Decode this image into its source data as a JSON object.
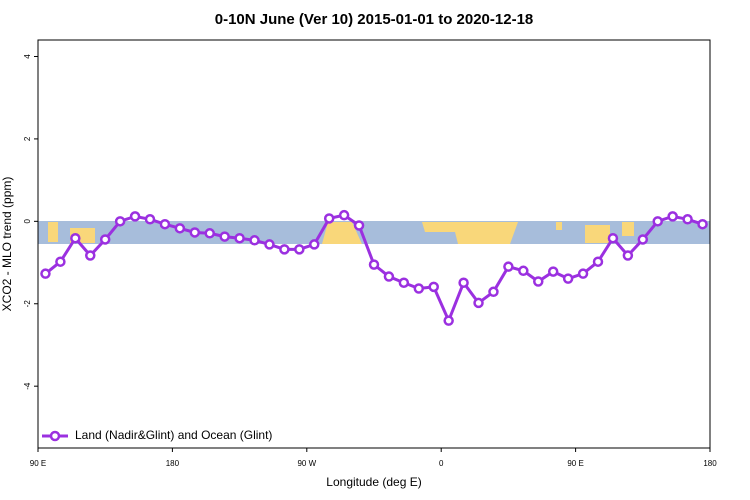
{
  "chart_data": {
    "type": "line",
    "title": "0-10N June (Ver 10)   2015-01-01 to 2020-12-18",
    "x_label": "Longitude (deg E)",
    "y_label": "XCO2 - MLO trend (ppm)",
    "xlim": [
      90,
      540
    ],
    "ylim": [
      -5.5,
      4.4
    ],
    "xticks": [
      {
        "value": 90,
        "label": "90 E"
      },
      180,
      {
        "value": 270,
        "label": "90 W"
      },
      {
        "value": 360,
        "label": "0"
      },
      {
        "value": 450,
        "label": "90 E"
      },
      {
        "value": 540,
        "label": "180"
      }
    ],
    "yticks": [
      -4,
      -2,
      0,
      2,
      4
    ],
    "legend": "bottom-left",
    "x": [
      95,
      105,
      115,
      125,
      135,
      145,
      155,
      165,
      175,
      185,
      195,
      205,
      215,
      225,
      235,
      245,
      255,
      265,
      275,
      285,
      295,
      305,
      315,
      325,
      335,
      345,
      355,
      365,
      375,
      385,
      395,
      405,
      415,
      425,
      435,
      445,
      455,
      465,
      475,
      485,
      495,
      505,
      515,
      525,
      535
    ],
    "series": [
      {
        "name": "Land (Nadir&Glint) and Ocean (Glint)",
        "color": "#9b30e0",
        "values": [
          -1.27,
          -0.98,
          -0.41,
          -0.83,
          -0.44,
          0.0,
          0.12,
          0.05,
          -0.07,
          -0.17,
          -0.27,
          -0.29,
          -0.37,
          -0.41,
          -0.46,
          -0.56,
          -0.68,
          -0.68,
          -0.56,
          0.07,
          0.15,
          -0.1,
          -1.05,
          -1.34,
          -1.49,
          -1.63,
          -1.59,
          -2.41,
          -1.49,
          -1.98,
          -1.71,
          -1.1,
          -1.2,
          -1.46,
          -1.22,
          -1.39,
          -1.27,
          -0.98,
          -0.41,
          -0.83,
          -0.44,
          0.0,
          0.12,
          0.05,
          -0.07
        ]
      }
    ]
  }
}
